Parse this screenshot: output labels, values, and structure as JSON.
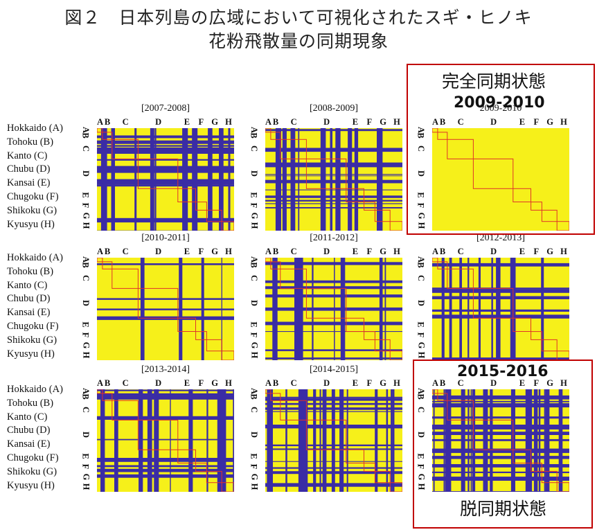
{
  "title_line1": "図２　日本列島の広域において可視化されたスギ・ヒノキ",
  "title_line2": "花粉飛散量の同期現象",
  "region_labels": [
    "Hokkaido (A)",
    "Tohoku (B)",
    "Kanto (C)",
    "Chubu (D)",
    "Kansai (E)",
    "Chugoku (F)",
    "Shikoku (G)",
    "Kyusyu (H)"
  ],
  "region_letters": [
    "A",
    "B",
    "C",
    "D",
    "E",
    "F",
    "G",
    "H"
  ],
  "callouts": {
    "sync_label": "完全同期状態",
    "sync_year": "2009-2010",
    "desync_year": "2015-2016",
    "desync_label": "脱同期状態"
  },
  "colors": {
    "yellow": "#f6f01a",
    "blue": "#3a2ca5",
    "red_line": "#e0342a",
    "highlight_box": "#c00000"
  },
  "chart_data": [
    {
      "type": "heatmap",
      "title": "[2007-2008]",
      "x_tick_labels": [
        "A",
        "B",
        "C",
        "D",
        "E",
        "F",
        "G",
        "H"
      ],
      "y_tick_labels": [
        "A",
        "B",
        "C",
        "D",
        "E",
        "F",
        "G",
        "H"
      ],
      "sync_level": 0.45
    },
    {
      "type": "heatmap",
      "title": "[2008-2009]",
      "x_tick_labels": [
        "A",
        "B",
        "C",
        "D",
        "E",
        "F",
        "G",
        "H"
      ],
      "y_tick_labels": [
        "A",
        "B",
        "C",
        "D",
        "E",
        "F",
        "G",
        "H"
      ],
      "sync_level": 0.55
    },
    {
      "type": "heatmap",
      "title": "2009-2010",
      "x_tick_labels": [
        "A",
        "B",
        "C",
        "D",
        "E",
        "F",
        "G",
        "H"
      ],
      "y_tick_labels": [
        "A",
        "B",
        "C",
        "D",
        "E",
        "F",
        "G",
        "H"
      ],
      "sync_level": 1.0
    },
    {
      "type": "heatmap",
      "title": "[2010-2011]",
      "x_tick_labels": [
        "A",
        "B",
        "C",
        "D",
        "E",
        "F",
        "G",
        "H"
      ],
      "y_tick_labels": [
        "A",
        "B",
        "C",
        "D",
        "E",
        "F",
        "G",
        "H"
      ],
      "sync_level": 0.85
    },
    {
      "type": "heatmap",
      "title": "[2011-2012]",
      "x_tick_labels": [
        "A",
        "B",
        "C",
        "D",
        "E",
        "F",
        "G",
        "H"
      ],
      "y_tick_labels": [
        "A",
        "B",
        "C",
        "D",
        "E",
        "F",
        "G",
        "H"
      ],
      "sync_level": 0.7
    },
    {
      "type": "heatmap",
      "title": "[2012-2013]",
      "x_tick_labels": [
        "A",
        "B",
        "C",
        "D",
        "E",
        "F",
        "G",
        "H"
      ],
      "y_tick_labels": [
        "A",
        "B",
        "C",
        "D",
        "E",
        "F",
        "G",
        "H"
      ],
      "sync_level": 0.72
    },
    {
      "type": "heatmap",
      "title": "[2013-2014]",
      "x_tick_labels": [
        "A",
        "B",
        "C",
        "D",
        "E",
        "F",
        "G",
        "H"
      ],
      "y_tick_labels": [
        "A",
        "B",
        "C",
        "D",
        "E",
        "F",
        "G",
        "H"
      ],
      "sync_level": 0.62
    },
    {
      "type": "heatmap",
      "title": "[2014-2015]",
      "x_tick_labels": [
        "A",
        "B",
        "C",
        "D",
        "E",
        "F",
        "G",
        "H"
      ],
      "y_tick_labels": [
        "A",
        "B",
        "C",
        "D",
        "E",
        "F",
        "G",
        "H"
      ],
      "sync_level": 0.5
    },
    {
      "type": "heatmap",
      "title": "",
      "x_tick_labels": [
        "A",
        "B",
        "C",
        "D",
        "E",
        "F",
        "G",
        "H"
      ],
      "y_tick_labels": [
        "A",
        "B",
        "C",
        "D",
        "E",
        "F",
        "G",
        "H"
      ],
      "sync_level": 0.35
    }
  ]
}
